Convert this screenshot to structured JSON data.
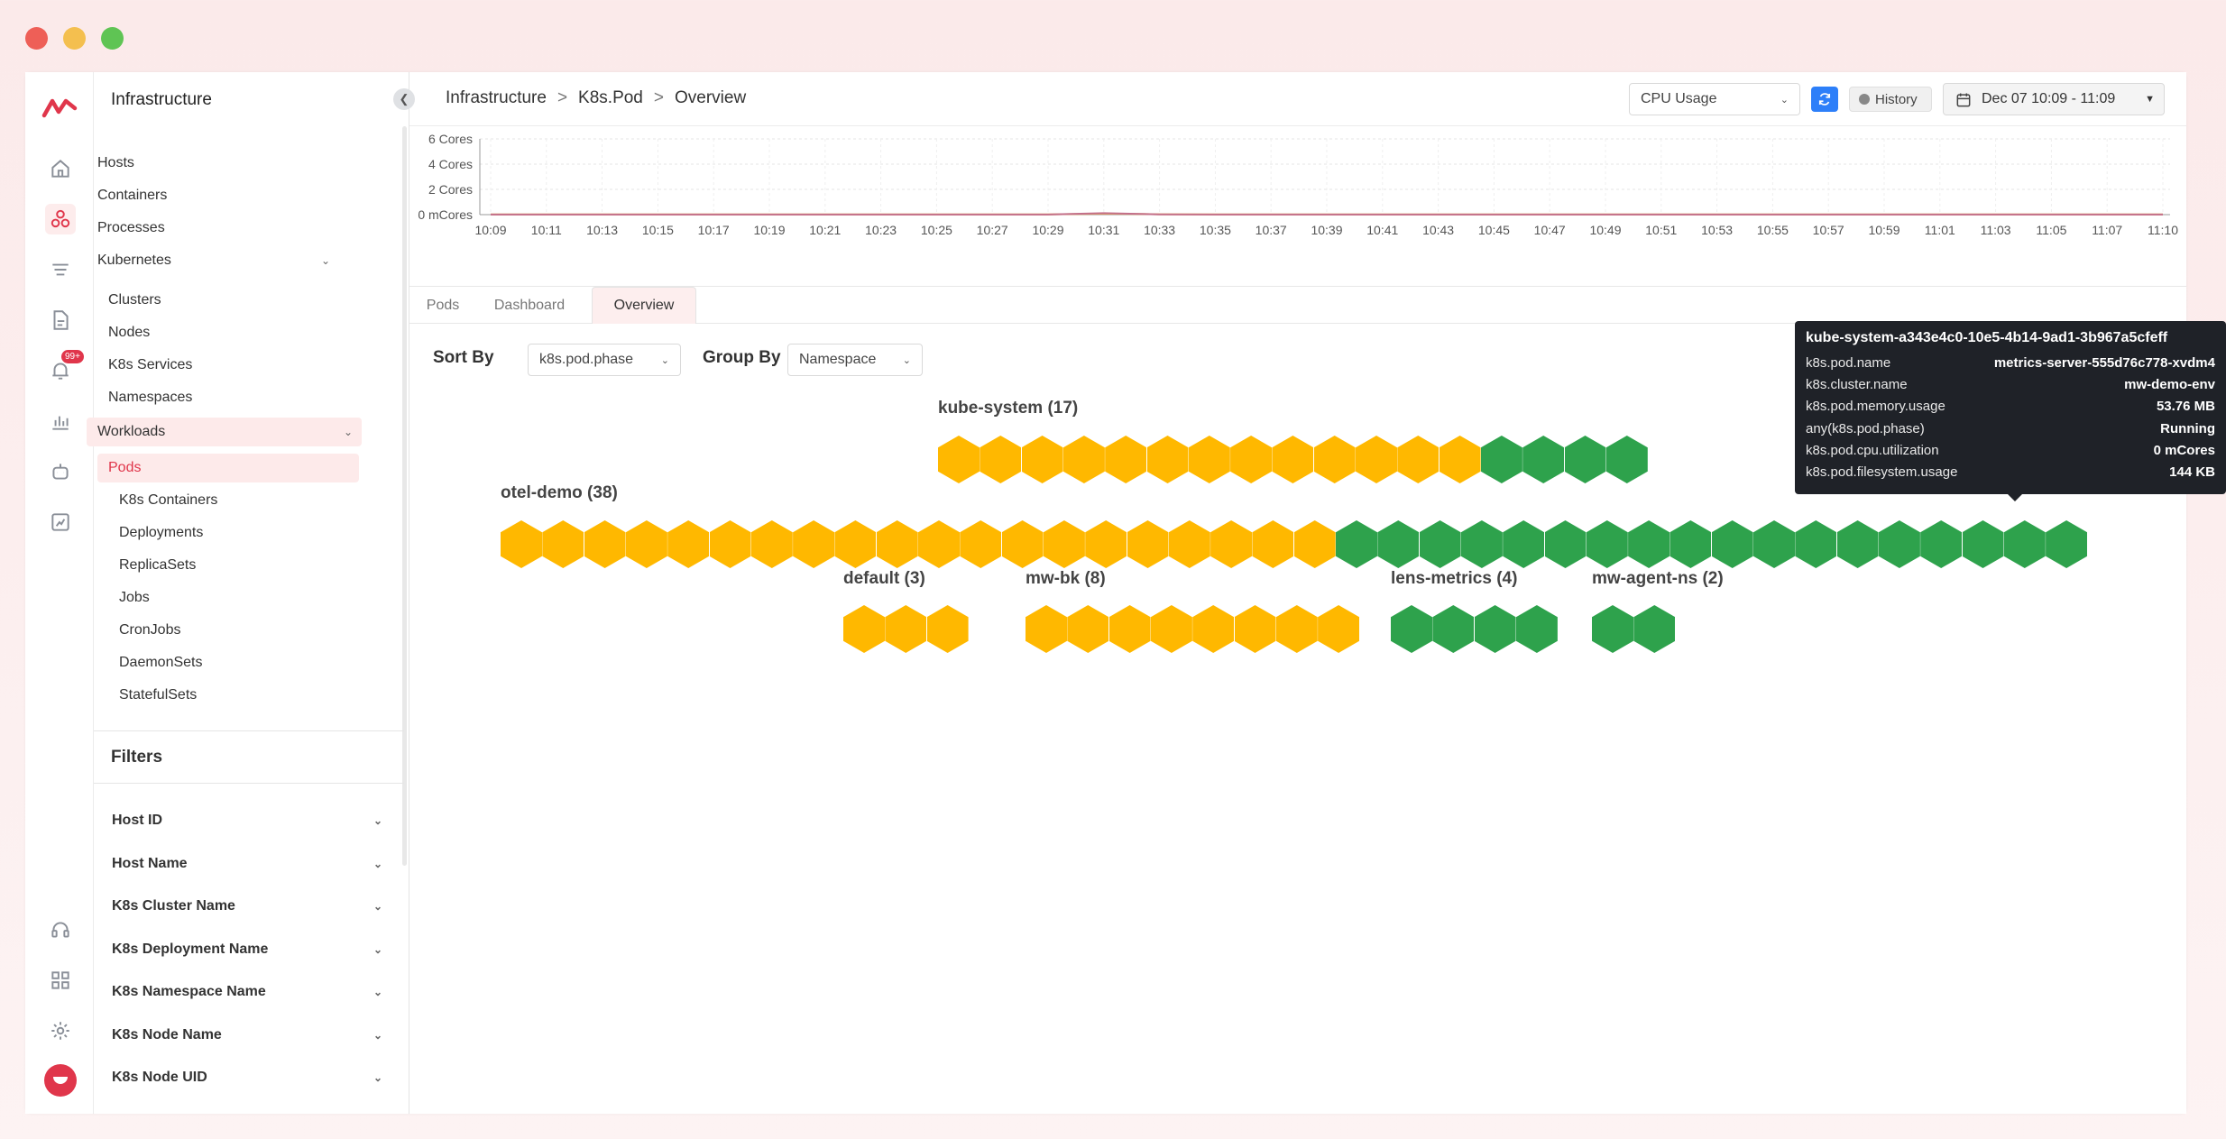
{
  "colors": {
    "running": "#2ea24c",
    "pending": "#ffb800",
    "brand": "#e0364b",
    "accent": "#2d7ff9"
  },
  "rail": {
    "icons": [
      "logo-icon",
      "home-icon",
      "infrastructure-icon",
      "logs-icon",
      "document-icon",
      "alerts-icon",
      "dashboards-icon",
      "bot-icon",
      "user-analytics-icon",
      "support-icon",
      "apps-grid-icon",
      "settings-icon",
      "user-avatar"
    ],
    "alerts_badge": "99+"
  },
  "sidebar": {
    "title": "Infrastructure",
    "items": [
      {
        "label": "Hosts"
      },
      {
        "label": "Containers"
      },
      {
        "label": "Processes"
      },
      {
        "label": "Kubernetes"
      },
      {
        "label": "Clusters"
      },
      {
        "label": "Nodes"
      },
      {
        "label": "K8s Services"
      },
      {
        "label": "Namespaces"
      },
      {
        "label": "Workloads"
      },
      {
        "label": "Pods"
      },
      {
        "label": "K8s Containers"
      },
      {
        "label": "Deployments"
      },
      {
        "label": "ReplicaSets"
      },
      {
        "label": "Jobs"
      },
      {
        "label": "CronJobs"
      },
      {
        "label": "DaemonSets"
      },
      {
        "label": "StatefulSets"
      }
    ],
    "filters_title": "Filters",
    "filters": [
      "Host ID",
      "Host Name",
      "K8s Cluster Name",
      "K8s Deployment Name",
      "K8s Namespace Name",
      "K8s Node Name",
      "K8s Node UID"
    ]
  },
  "breadcrumb": {
    "root": "Infrastructure",
    "entity": "K8s.Pod",
    "page": "Overview",
    "separator": ">"
  },
  "toolbar": {
    "metric_select": "CPU Usage",
    "history_label": "History",
    "time_range": "Dec 07 10:09 - 11:09"
  },
  "chart_data": {
    "type": "line",
    "title": "",
    "xlabel": "",
    "ylabel": "",
    "y_ticks": [
      "0 mCores",
      "2 Cores",
      "4 Cores",
      "6 Cores"
    ],
    "ylim": [
      0,
      6
    ],
    "x": [
      "10:09",
      "10:11",
      "10:13",
      "10:15",
      "10:17",
      "10:19",
      "10:21",
      "10:23",
      "10:25",
      "10:27",
      "10:29",
      "10:31",
      "10:33",
      "10:35",
      "10:37",
      "10:39",
      "10:41",
      "10:43",
      "10:45",
      "10:47",
      "10:49",
      "10:51",
      "10:53",
      "10:55",
      "10:57",
      "10:59",
      "11:01",
      "11:03",
      "11:05",
      "11:07",
      "11:10"
    ],
    "series": [
      {
        "color": "#e8b04a",
        "values": [
          0.02,
          0.02,
          0.02,
          0.02,
          0.02,
          0.02,
          0.02,
          0.02,
          0.02,
          0.02,
          0.02,
          0.08,
          0.03,
          0.02,
          0.02,
          0.02,
          0.02,
          0.02,
          0.02,
          0.02,
          0.02,
          0.02,
          0.02,
          0.02,
          0.02,
          0.02,
          0.02,
          0.02,
          0.02,
          0.02,
          0.02
        ]
      },
      {
        "color": "#c3708b",
        "values": [
          0.01,
          0.01,
          0.01,
          0.01,
          0.01,
          0.01,
          0.01,
          0.01,
          0.01,
          0.01,
          0.01,
          0.12,
          0.02,
          0.01,
          0.01,
          0.01,
          0.01,
          0.01,
          0.01,
          0.01,
          0.01,
          0.01,
          0.01,
          0.01,
          0.01,
          0.01,
          0.01,
          0.01,
          0.01,
          0.01,
          0.01
        ]
      }
    ],
    "grid": true
  },
  "tabs": [
    {
      "label": "Pods"
    },
    {
      "label": "Dashboard"
    },
    {
      "label": "Overview"
    }
  ],
  "controls": {
    "sort_by_label": "Sort By",
    "sort_by_value": "k8s.pod.phase",
    "group_by_label": "Group By",
    "group_by_value": "Namespace"
  },
  "hexmap": {
    "groups": [
      {
        "label": "kube-system (17)",
        "pending": 13,
        "running": 4
      },
      {
        "label": "otel-demo (38)",
        "pending": 20,
        "running": 18
      },
      {
        "label": "default (3)",
        "pending": 3,
        "running": 0
      },
      {
        "label": "mw-bk (8)",
        "pending": 8,
        "running": 0
      },
      {
        "label": "lens-metrics (4)",
        "pending": 0,
        "running": 4
      },
      {
        "label": "mw-agent-ns (2)",
        "pending": 0,
        "running": 2
      }
    ]
  },
  "tooltip": {
    "title": "kube-system-a343e4c0-10e5-4b14-9ad1-3b967a5cfeff",
    "rows": [
      {
        "key": "k8s.pod.name",
        "value": "metrics-server-555d76c778-xvdm4"
      },
      {
        "key": "k8s.cluster.name",
        "value": "mw-demo-env"
      },
      {
        "key": "k8s.pod.memory.usage",
        "value": "53.76 MB"
      },
      {
        "key": "any(k8s.pod.phase)",
        "value": "Running"
      },
      {
        "key": "k8s.pod.cpu.utilization",
        "value": "0 mCores"
      },
      {
        "key": "k8s.pod.filesystem.usage",
        "value": "144 KB"
      }
    ]
  }
}
